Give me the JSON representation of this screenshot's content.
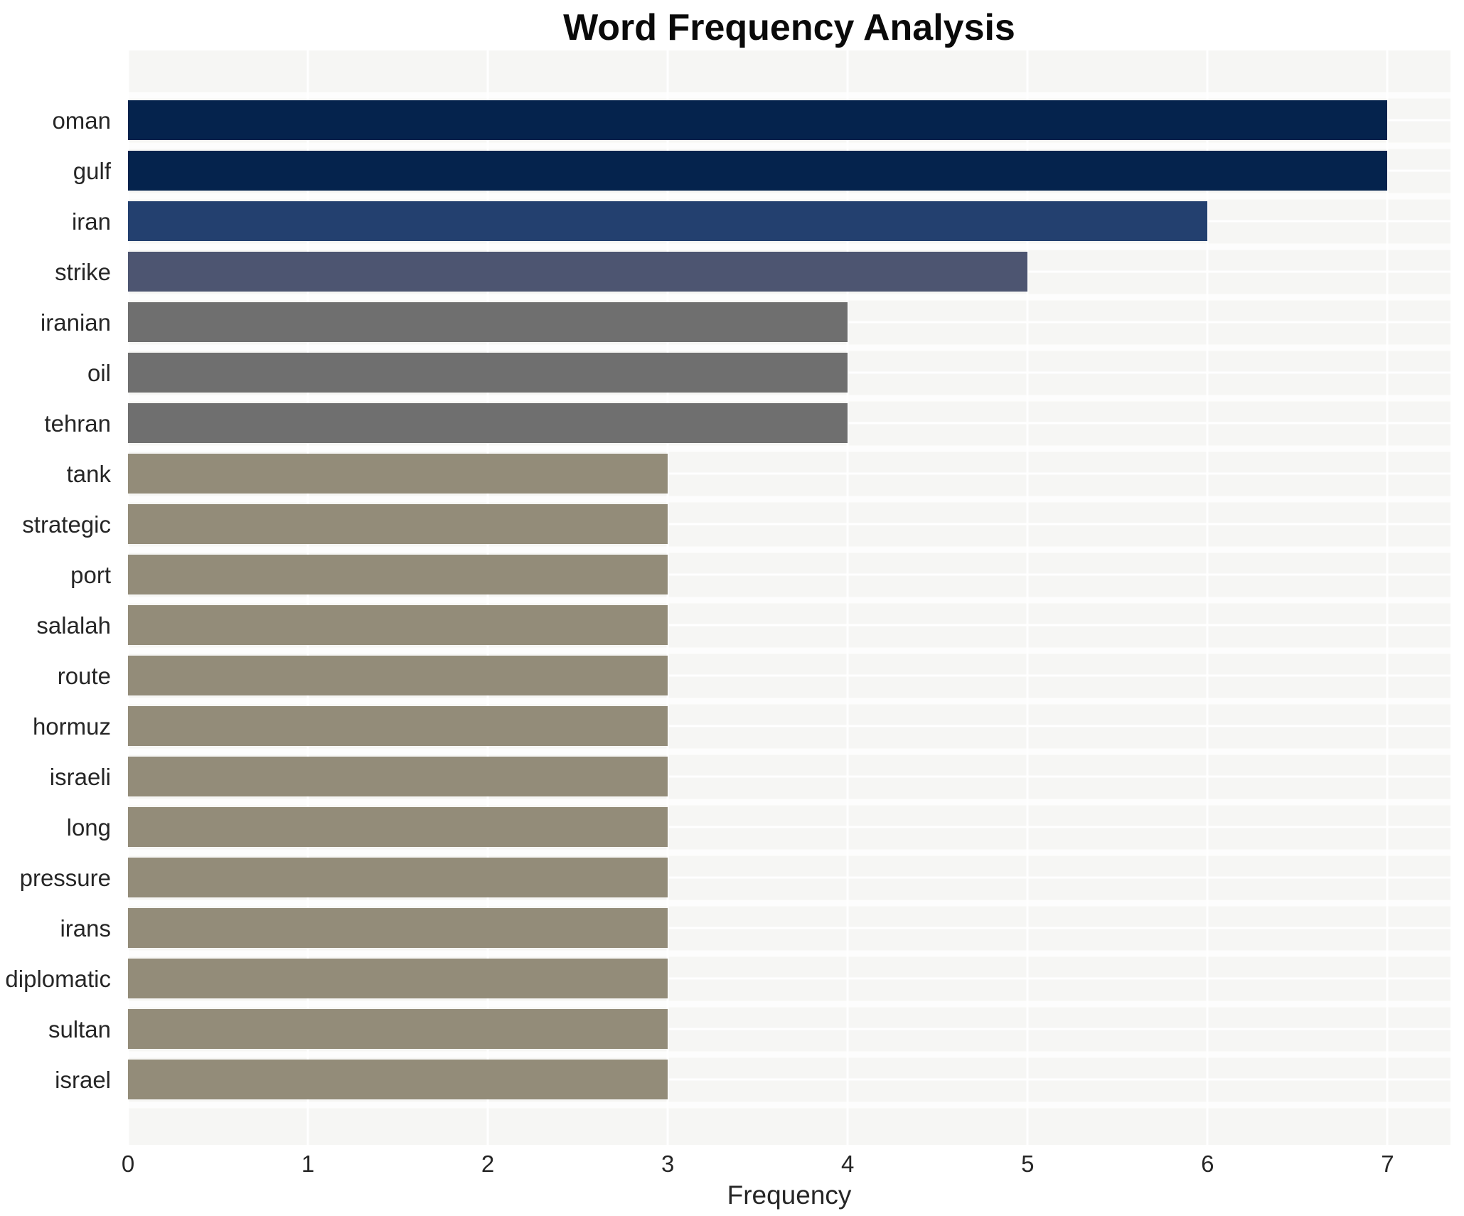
{
  "header": {
    "title": "Word Frequency Analysis"
  },
  "chart_data": {
    "type": "bar",
    "orientation": "horizontal",
    "title": "Word Frequency Analysis",
    "xlabel": "Frequency",
    "ylabel": "",
    "categories": [
      "oman",
      "gulf",
      "iran",
      "strike",
      "iranian",
      "oil",
      "tehran",
      "tank",
      "strategic",
      "port",
      "salalah",
      "route",
      "hormuz",
      "israeli",
      "long",
      "pressure",
      "irans",
      "diplomatic",
      "sultan",
      "israel"
    ],
    "values": [
      7,
      7,
      6,
      5,
      4,
      4,
      4,
      3,
      3,
      3,
      3,
      3,
      3,
      3,
      3,
      3,
      3,
      3,
      3,
      3
    ],
    "xlim": [
      0,
      7.35
    ],
    "xticks": [
      0,
      1,
      2,
      3,
      4,
      5,
      6,
      7
    ],
    "grid": "white-major-vertical-and-horizontal",
    "legend": "none",
    "colors": {
      "value_7": "#05234d",
      "value_6": "#23406f",
      "value_5": "#4d5571",
      "value_4": "#6f6f6f",
      "value_3": "#938c79",
      "plot_background": "#f6f6f4",
      "gridline": "#ffffff",
      "text": "#262626",
      "title_text": "#0a0a0a"
    }
  }
}
